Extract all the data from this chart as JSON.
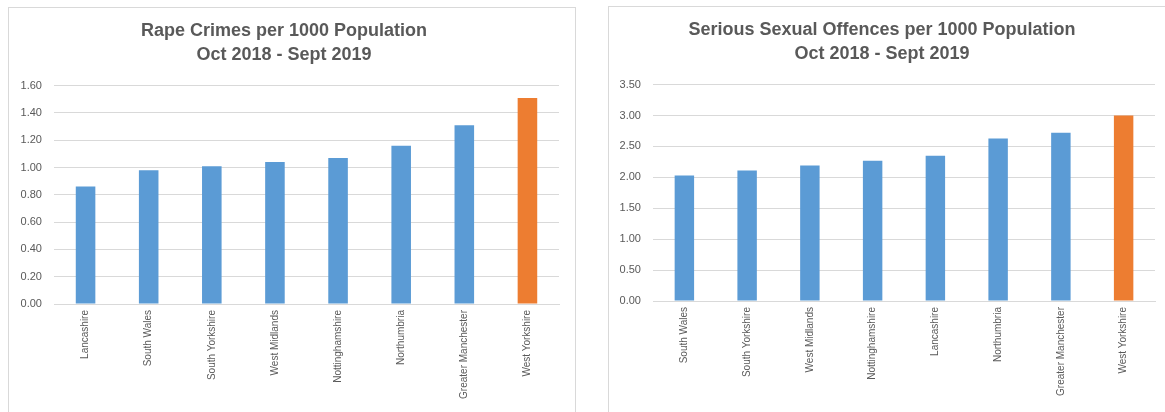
{
  "chart_data": [
    {
      "type": "bar",
      "title": "Rape Crimes per 1000 Population",
      "subtitle": "Oct 2018 - Sept 2019",
      "categories": [
        "Lancashire",
        "South Wales",
        "South Yorkshire",
        "West Midlands",
        "Nottinghamshire",
        "Northumbria",
        "Greater Manchester",
        "West Yorkshire"
      ],
      "values": [
        0.86,
        0.98,
        1.01,
        1.04,
        1.07,
        1.16,
        1.31,
        1.51
      ],
      "colors": [
        "#5b9bd5",
        "#5b9bd5",
        "#5b9bd5",
        "#5b9bd5",
        "#5b9bd5",
        "#5b9bd5",
        "#5b9bd5",
        "#ed7d31"
      ],
      "ylim": [
        0,
        1.6
      ],
      "yticks": [
        {
          "value": 0,
          "label": "0.00"
        },
        {
          "value": 0.2,
          "label": "0.20"
        },
        {
          "value": 0.4,
          "label": "0.40"
        },
        {
          "value": 0.6,
          "label": "0.60"
        },
        {
          "value": 0.8,
          "label": "0.80"
        },
        {
          "value": 1,
          "label": "1.00"
        },
        {
          "value": 1.2,
          "label": "1.20"
        },
        {
          "value": 1.4,
          "label": "1.40"
        },
        {
          "value": 1.6,
          "label": "1.60"
        }
      ],
      "grid": "y"
    },
    {
      "type": "bar",
      "title": "Serious Sexual Offences per 1000 Population",
      "subtitle": "Oct 2018 - Sept 2019",
      "categories": [
        "South Wales",
        "South Yorkshire",
        "West Midlands",
        "Nottinghamshire",
        "Lancashire",
        "Northumbria",
        "Greater Manchester",
        "West Yorkshire"
      ],
      "values": [
        2.03,
        2.11,
        2.19,
        2.27,
        2.35,
        2.63,
        2.72,
        3.0
      ],
      "colors": [
        "#5b9bd5",
        "#5b9bd5",
        "#5b9bd5",
        "#5b9bd5",
        "#5b9bd5",
        "#5b9bd5",
        "#5b9bd5",
        "#ed7d31"
      ],
      "ylim": [
        0,
        3.5
      ],
      "yticks": [
        {
          "value": 0,
          "label": "0.00"
        },
        {
          "value": 0.5,
          "label": "0.50"
        },
        {
          "value": 1,
          "label": "1.00"
        },
        {
          "value": 1.5,
          "label": "1.50"
        },
        {
          "value": 2,
          "label": "2.00"
        },
        {
          "value": 2.5,
          "label": "2.50"
        },
        {
          "value": 3,
          "label": "3.00"
        },
        {
          "value": 3.5,
          "label": "3.50"
        }
      ],
      "grid": "y"
    }
  ]
}
